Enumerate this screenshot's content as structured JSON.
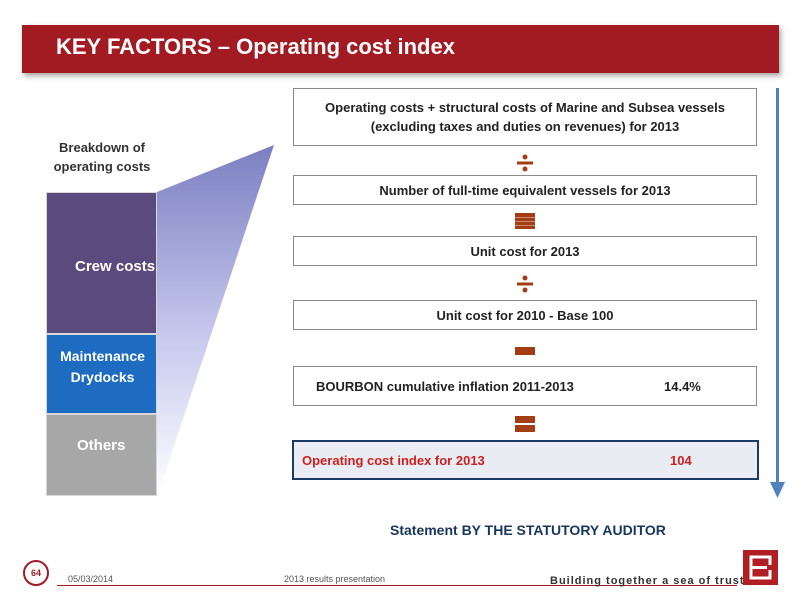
{
  "title": "KEY FACTORS – Operating cost index",
  "breakdown": {
    "label": "Breakdown of operating costs",
    "segments": [
      {
        "label": "Crew costs",
        "color": "#5b4a7e"
      },
      {
        "label": "Maintenance Drydocks",
        "color": "#1e6cc1"
      },
      {
        "label": "Others",
        "color": "#a7a7a7"
      }
    ]
  },
  "steps": {
    "numerator": "Operating costs + structural costs of Marine and Subsea vessels (excluding taxes and duties on revenues) for 2013",
    "divisor_vessels": "Number of full-time equivalent vessels for 2013",
    "unit_cost_2013": "Unit cost for 2013",
    "unit_cost_2010": "Unit cost for 2010 - Base 100",
    "inflation_label": "BOURBON cumulative inflation 2011-2013",
    "inflation_value": "14.4%",
    "index_label": "Operating cost index for 2013",
    "index_value": "104"
  },
  "operators": [
    "divide",
    "equals",
    "divide",
    "minus",
    "equals"
  ],
  "statement": "Statement BY THE STATUTORY AUDITOR",
  "footer": {
    "page_number": "64",
    "date": "05/03/2014",
    "presentation": "2013 results presentation",
    "tagline": "Building together a sea of trust"
  },
  "colors": {
    "brand_red": "#a31b22",
    "operator_color": "#a33d14",
    "arrow_blue": "#4f81bd",
    "result_border": "#1c3a66",
    "result_text": "#cc1f1f"
  }
}
